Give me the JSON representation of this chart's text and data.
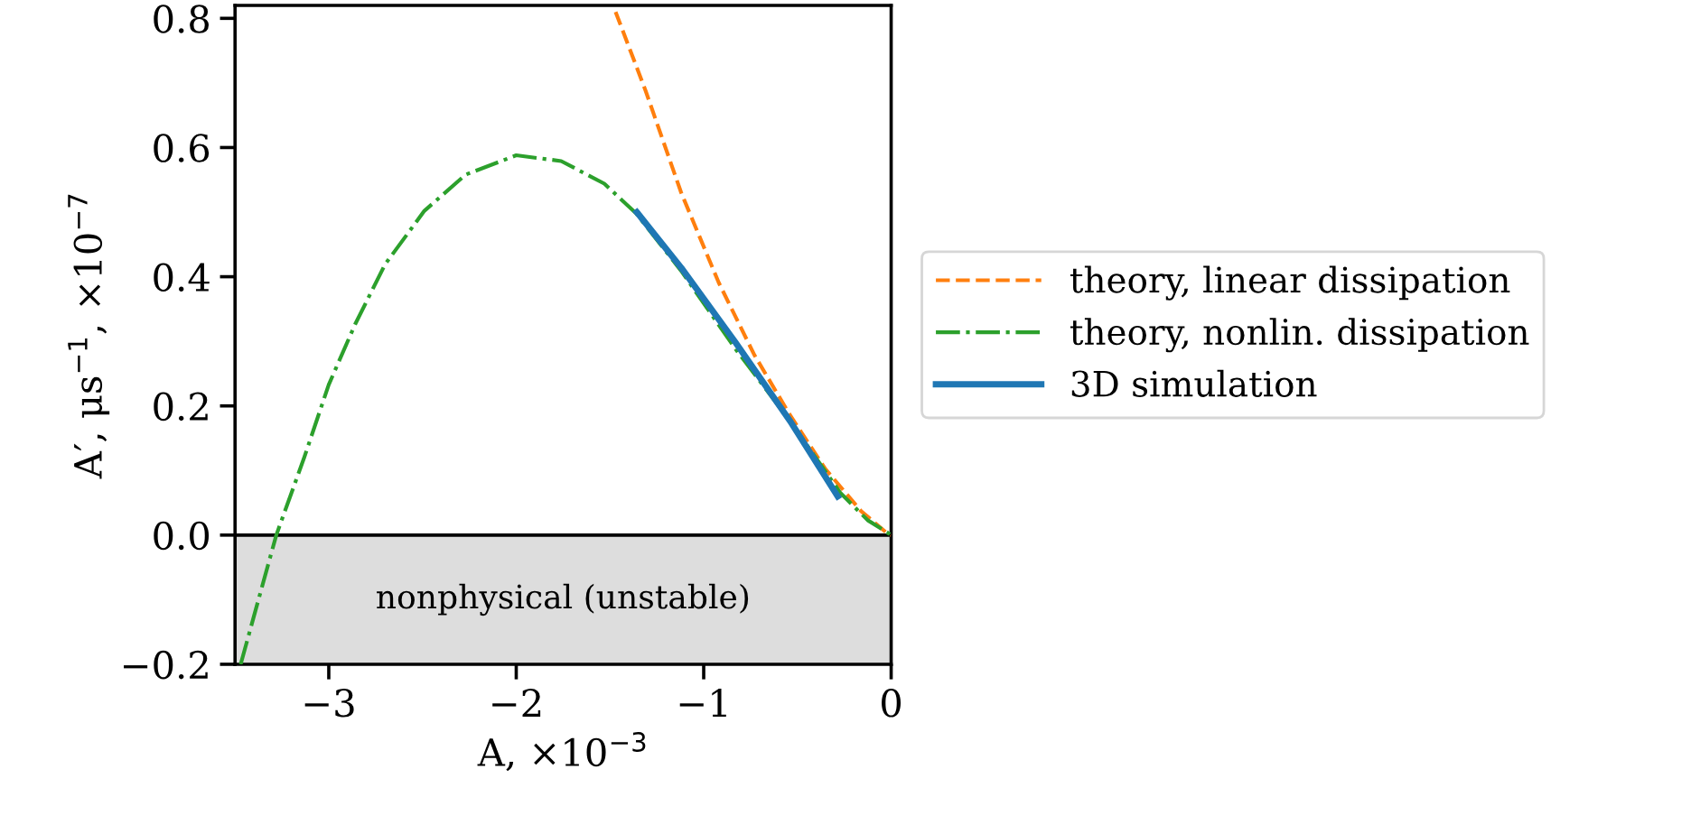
{
  "chart_data": {
    "type": "line",
    "xlabel": "A, ×10$^{−3}$",
    "ylabel": "A′, μs$^{−1}$, ×10$^{−7}$",
    "series": [
      {
        "name": "theory, linear dissipation",
        "color": "#ff7f0e",
        "line_style": "dashed",
        "x": [
          -1.47,
          -1.31,
          -1.12,
          -0.92,
          -0.73,
          -0.54,
          -0.35,
          -0.16,
          -0.03,
          0
        ],
        "values": [
          0.81,
          0.688,
          0.53,
          0.391,
          0.279,
          0.186,
          0.102,
          0.037,
          0.005,
          0
        ]
      },
      {
        "name": "theory, nonlin. dissipation",
        "color": "#2ca02c",
        "line_style": "dashdot",
        "x": [
          -3.47,
          -3.28,
          -3.13,
          -3.0,
          -2.86,
          -2.7,
          -2.49,
          -2.27,
          -2.0,
          -1.76,
          -1.53,
          -1.36,
          -1.12,
          -0.83,
          -0.54,
          -0.27,
          -0.125,
          -0.01,
          0
        ],
        "values": [
          -0.2,
          0,
          0.121,
          0.233,
          0.326,
          0.419,
          0.502,
          0.558,
          0.588,
          0.579,
          0.544,
          0.498,
          0.409,
          0.288,
          0.177,
          0.065,
          0.023,
          0.002,
          0
        ]
      },
      {
        "name": "3D simulation",
        "color": "#1f77b4",
        "line_style": "solid",
        "x": [
          -1.357,
          -1.12,
          -0.83,
          -0.54,
          -0.285
        ],
        "values": [
          0.5,
          0.414,
          0.298,
          0.177,
          0.06
        ]
      }
    ],
    "bands": [
      {
        "axis": "y",
        "from": -0.2,
        "to": 0,
        "label": "nonphysical (unstable)",
        "color": "#dddddd"
      }
    ],
    "ref_lines": [
      {
        "axis": "y",
        "value": 0,
        "color": "#000000"
      }
    ],
    "xlim": [
      -3.5,
      0
    ],
    "ylim": [
      -0.2,
      0.82
    ],
    "xticks": [
      {
        "value": -3,
        "label": "−3"
      },
      {
        "value": -2,
        "label": "−2"
      },
      {
        "value": -1,
        "label": "−1"
      },
      0
    ],
    "yticks": [
      {
        "value": -0.2,
        "label": "−0.2"
      },
      {
        "value": 0,
        "label": "0.0"
      },
      {
        "value": 0.2,
        "label": "0.2"
      },
      {
        "value": 0.4,
        "label": "0.4"
      },
      {
        "value": 0.6,
        "label": "0.6"
      },
      {
        "value": 0.8,
        "label": "0.8"
      }
    ],
    "grid": false,
    "legend": "right",
    "marker": "none"
  }
}
